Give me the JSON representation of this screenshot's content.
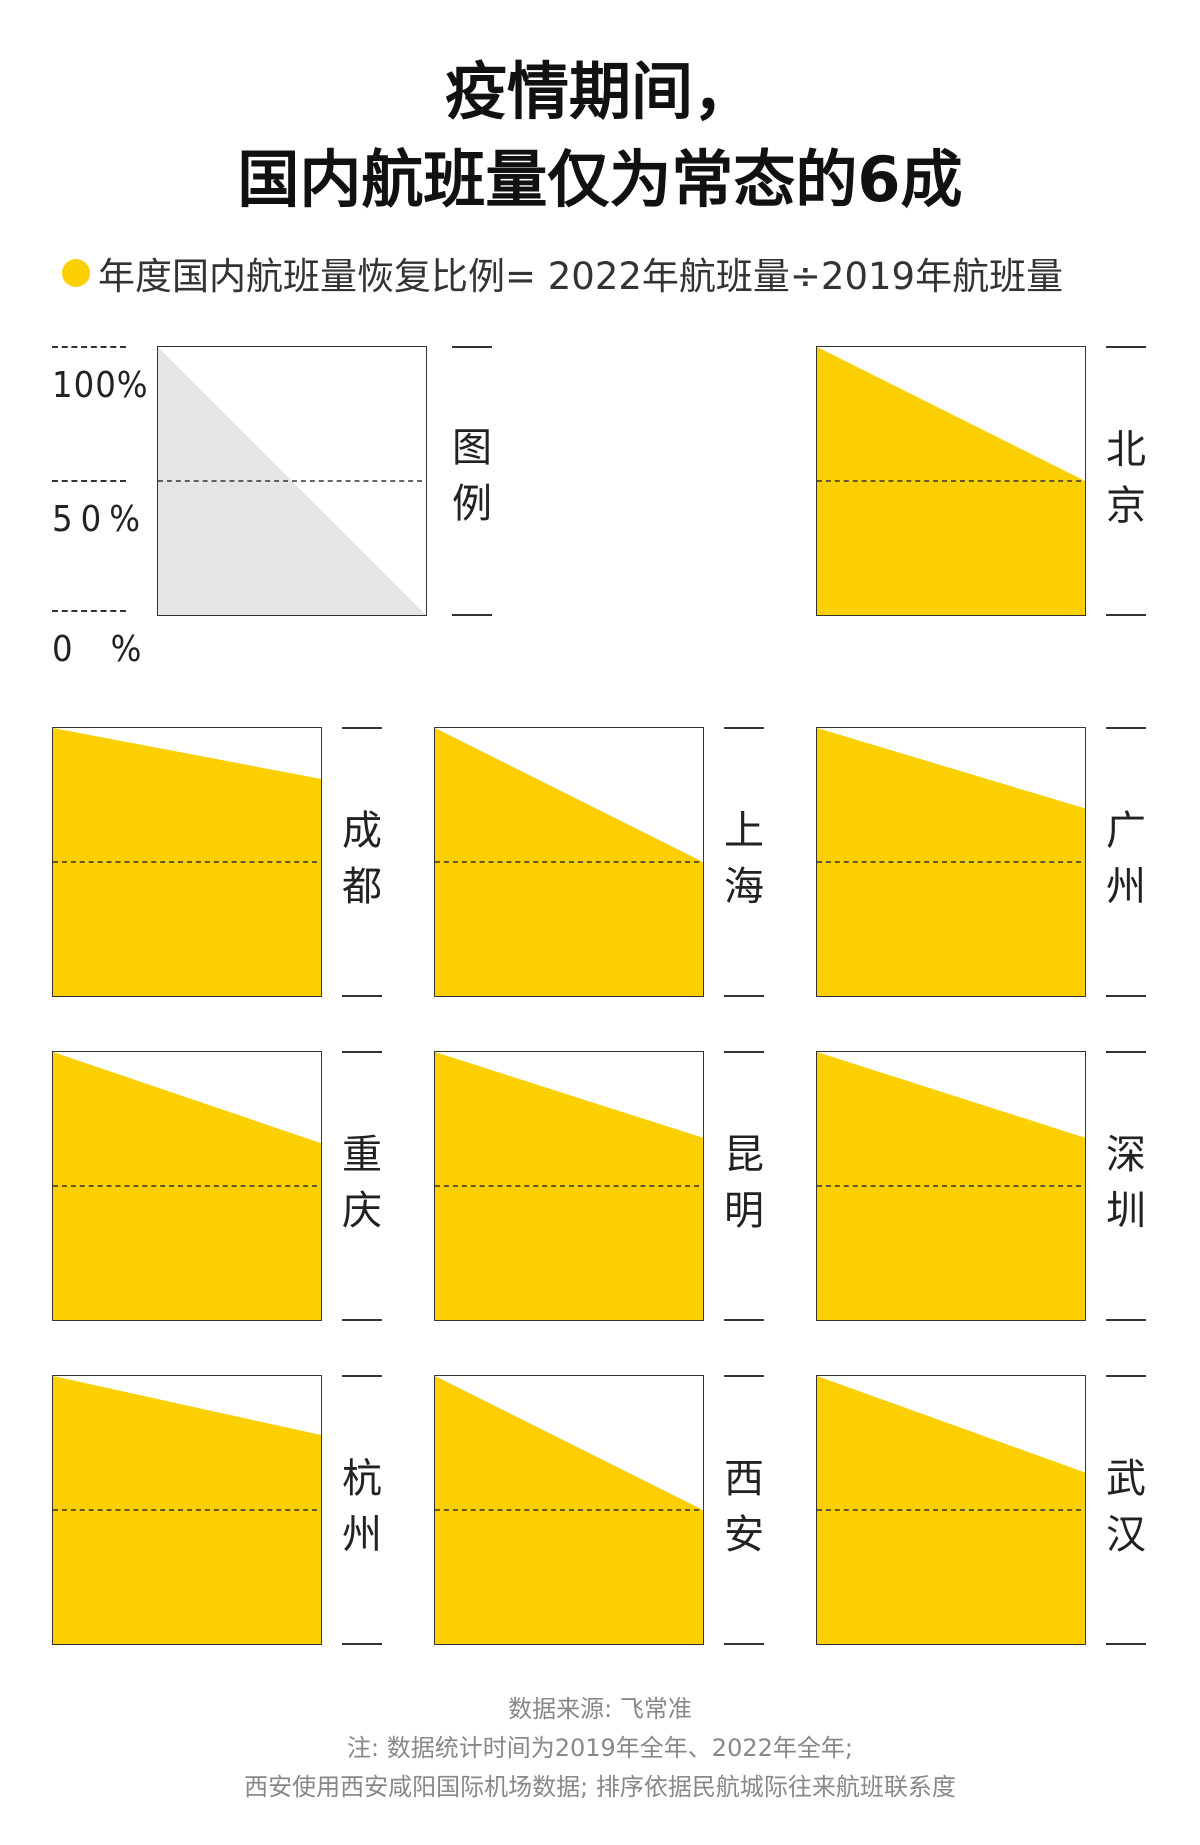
{
  "title_line1": "疫情期间，",
  "title_line2": "国内航班量仅为常态的6成",
  "legend_text": "年度国内航班量恢复比例= 2022年航班量÷2019年航班量",
  "scale_labels": [
    "100%",
    "50%",
    "0　%"
  ],
  "legend_label": "图例",
  "colors": {
    "accent": "#FBCF00",
    "legend_fill": "#E5E5E5",
    "border": "#333333"
  },
  "chart_data": {
    "type": "area",
    "title": "疫情期间，国内航班量仅为常态的6成",
    "subtitle": "年度国内航班量恢复比例= 2022年航班量÷2019年航班量",
    "x": [
      "2019",
      "2022"
    ],
    "ylim": [
      0,
      100
    ],
    "y_ticks": [
      "0　%",
      "50%",
      "100%"
    ],
    "series": [
      {
        "name": "北京",
        "values": [
          100,
          50
        ]
      },
      {
        "name": "成都",
        "values": [
          100,
          81
        ]
      },
      {
        "name": "上海",
        "values": [
          100,
          50
        ]
      },
      {
        "name": "广州",
        "values": [
          100,
          70
        ]
      },
      {
        "name": "重庆",
        "values": [
          100,
          66
        ]
      },
      {
        "name": "昆明",
        "values": [
          100,
          68
        ]
      },
      {
        "name": "深圳",
        "values": [
          100,
          68
        ]
      },
      {
        "name": "杭州",
        "values": [
          100,
          78
        ]
      },
      {
        "name": "西安",
        "values": [
          100,
          50
        ]
      },
      {
        "name": "武汉",
        "values": [
          100,
          64
        ]
      }
    ]
  },
  "footer": {
    "line1": "数据来源: 飞常准",
    "line2": "注: 数据统计时间为2019年全年、2022年全年;",
    "line3": "西安使用西安咸阳国际机场数据; 排序依据民航城际往来航班联系度"
  }
}
